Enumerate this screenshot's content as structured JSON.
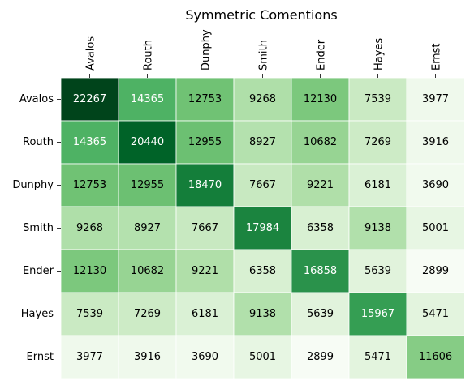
{
  "chart_data": {
    "type": "heatmap",
    "title": "Symmetric Comentions",
    "xlabel": "",
    "ylabel": "",
    "x_labels": [
      "Avalos",
      "Routh",
      "Dunphy",
      "Smith",
      "Ender",
      "Hayes",
      "Ernst"
    ],
    "y_labels": [
      "Avalos",
      "Routh",
      "Dunphy",
      "Smith",
      "Ender",
      "Hayes",
      "Ernst"
    ],
    "x_axis_position": "top",
    "colormap": "Greens",
    "grid": false,
    "colorbar": false,
    "values": [
      [
        22267,
        14365,
        12753,
        9268,
        12130,
        7539,
        3977
      ],
      [
        14365,
        20440,
        12955,
        8927,
        10682,
        7269,
        3916
      ],
      [
        12753,
        12955,
        18470,
        7667,
        9221,
        6181,
        3690
      ],
      [
        9268,
        8927,
        7667,
        17984,
        6358,
        9138,
        5001
      ],
      [
        12130,
        10682,
        9221,
        6358,
        16858,
        5639,
        2899
      ],
      [
        7539,
        7269,
        6181,
        9138,
        5639,
        15967,
        5471
      ],
      [
        3977,
        3916,
        3690,
        5001,
        2899,
        5471,
        11606
      ]
    ]
  }
}
